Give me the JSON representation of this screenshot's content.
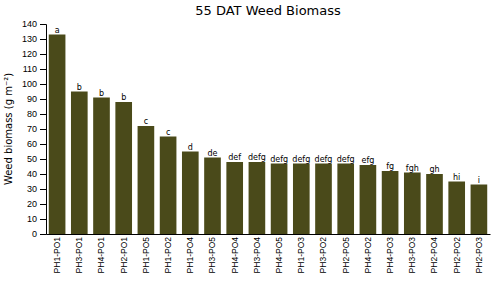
{
  "chart_data": {
    "type": "bar",
    "title": "55 DAT Weed Biomass",
    "ylabel": "Weed biomass (g m⁻²)",
    "categories": [
      "PH1-PO1",
      "PH3-PO1",
      "PH4-PO1",
      "PH2-PO1",
      "PH1-PO5",
      "PH1-PO2",
      "PH1-PO4",
      "PH3-PO5",
      "PH4-PO4",
      "PH3-PO4",
      "PH4-PO5",
      "PH1-PO3",
      "PH3-PO2",
      "PH2-PO5",
      "PH4-PO2",
      "PH4-PO3",
      "PH3-PO3",
      "PH2-PO4",
      "PH2-PO2",
      "PH2-PO3"
    ],
    "values": [
      133,
      95,
      91,
      88,
      72,
      65,
      55,
      51,
      48,
      48,
      47,
      47,
      47,
      47,
      46,
      42,
      41,
      40,
      35,
      33
    ],
    "annotations": [
      "a",
      "b",
      "b",
      "b",
      "c",
      "c",
      "d",
      "de",
      "def",
      "defg",
      "defg",
      "defg",
      "defg",
      "defg",
      "efg",
      "fg",
      "fgh",
      "gh",
      "hi",
      "i"
    ],
    "color": "#4a4a1a",
    "ylim": [
      0,
      140
    ],
    "yticks": [
      0,
      10,
      20,
      30,
      40,
      50,
      60,
      70,
      80,
      90,
      100,
      110,
      120,
      130,
      140
    ],
    "grid": false
  }
}
